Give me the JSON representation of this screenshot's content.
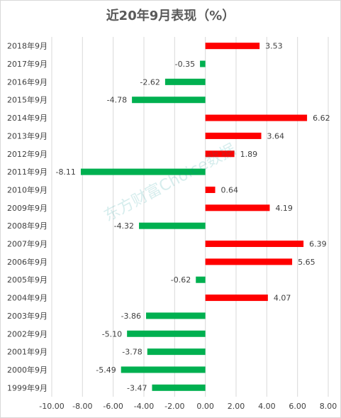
{
  "chart_data": {
    "type": "bar",
    "orientation": "horizontal",
    "title": "近20年9月表现（%）",
    "categories": [
      "2018年9月",
      "2017年9月",
      "2016年9月",
      "2015年9月",
      "2014年9月",
      "2013年9月",
      "2012年9月",
      "2011年9月",
      "2010年9月",
      "2009年9月",
      "2008年9月",
      "2007年9月",
      "2006年9月",
      "2005年9月",
      "2004年9月",
      "2003年9月",
      "2002年9月",
      "2001年9月",
      "2000年9月",
      "1999年9月"
    ],
    "values": [
      3.53,
      -0.35,
      -2.62,
      -4.78,
      6.62,
      3.64,
      1.89,
      -8.11,
      0.64,
      4.19,
      -4.32,
      6.39,
      5.65,
      -0.62,
      4.07,
      -3.86,
      -5.1,
      -3.78,
      -5.49,
      -3.47
    ],
    "value_labels": [
      "3.53",
      "-0.35",
      "-2.62",
      "-4.78",
      "6.62",
      "3.64",
      "1.89",
      "-8.11",
      "0.64",
      "4.19",
      "-4.32",
      "6.39",
      "5.65",
      "-0.62",
      "4.07",
      "-3.86",
      "-5.10",
      "-3.78",
      "-5.49",
      "-3.47"
    ],
    "xlim": [
      -10,
      8
    ],
    "xticks": [
      -10,
      -8,
      -6,
      -4,
      -2,
      0,
      2,
      4,
      6,
      8
    ],
    "xtick_labels": [
      "-10.00",
      "-8.00",
      "-6.00",
      "-4.00",
      "-2.00",
      "0.00",
      "2.00",
      "4.00",
      "6.00",
      "8.00"
    ],
    "grid": "vertical",
    "colors": {
      "positive": "#ff0000",
      "negative": "#00b050",
      "grid": "#d9d9d9"
    },
    "watermark": "东方财富Choice数据"
  }
}
